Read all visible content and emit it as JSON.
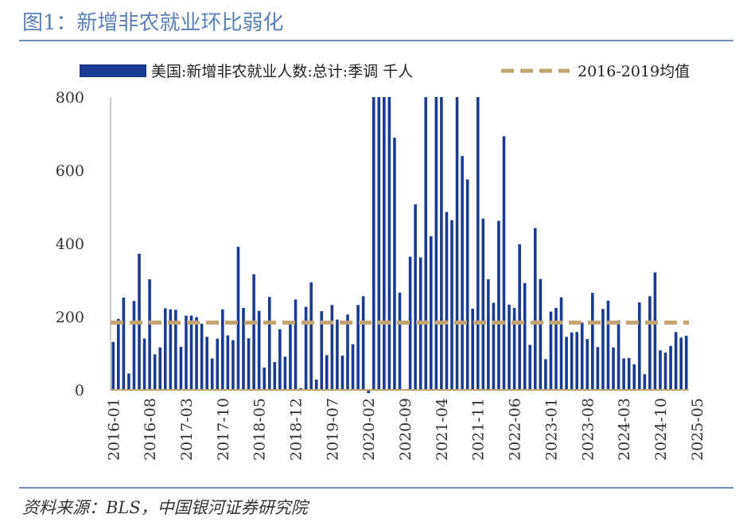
{
  "figure_title": "图1：新增非农就业环比弱化",
  "source_note": "资料来源：BLS，中国银河证券研究院",
  "chart_data": {
    "type": "bar",
    "series": [
      {
        "name": "美国:新增非农就业人数:总计:季调 千人",
        "color": "#1a3a94",
        "values": [
          131,
          194,
          252,
          45,
          243,
          372,
          140,
          302,
          97,
          116,
          223,
          220,
          219,
          118,
          203,
          203,
          199,
          181,
          145,
          86,
          140,
          220,
          149,
          136,
          391,
          224,
          141,
          316,
          216,
          61,
          254,
          76,
          166,
          91,
          189,
          247,
          5,
          227,
          294,
          28,
          215,
          95,
          232,
          192,
          94,
          206,
          125,
          232,
          256,
          -9,
          800,
          800,
          800,
          800,
          689,
          266,
          0,
          364,
          507,
          362,
          800,
          420,
          800,
          800,
          486,
          464,
          800,
          639,
          575,
          222,
          800,
          468,
          302,
          238,
          462,
          693,
          233,
          224,
          398,
          292,
          123,
          442,
          303,
          84,
          214,
          224,
          253,
          145,
          157,
          158,
          184,
          139,
          265,
          117,
          221,
          244,
          116,
          190,
          86,
          87,
          70,
          239,
          43,
          256,
          321,
          108,
          102,
          120,
          158,
          143,
          148
        ]
      },
      {
        "name": "2016-2019均值",
        "color": "#c0a472",
        "value": 184
      }
    ],
    "x_start": "2016-01",
    "x_tick_labels": [
      "2016-01",
      "2016-08",
      "2017-03",
      "2017-10",
      "2018-05",
      "2018-12",
      "2019-07",
      "2020-02",
      "2020-09",
      "2021-04",
      "2021-11",
      "2022-06",
      "2023-01",
      "2023-08",
      "2024-03",
      "2024-10",
      "2025-05"
    ],
    "y_tick_labels": [
      "0",
      "200",
      "400",
      "600",
      "800"
    ],
    "ylim": [
      0,
      800
    ],
    "clipped_at_top": true,
    "legend_position": "top"
  }
}
